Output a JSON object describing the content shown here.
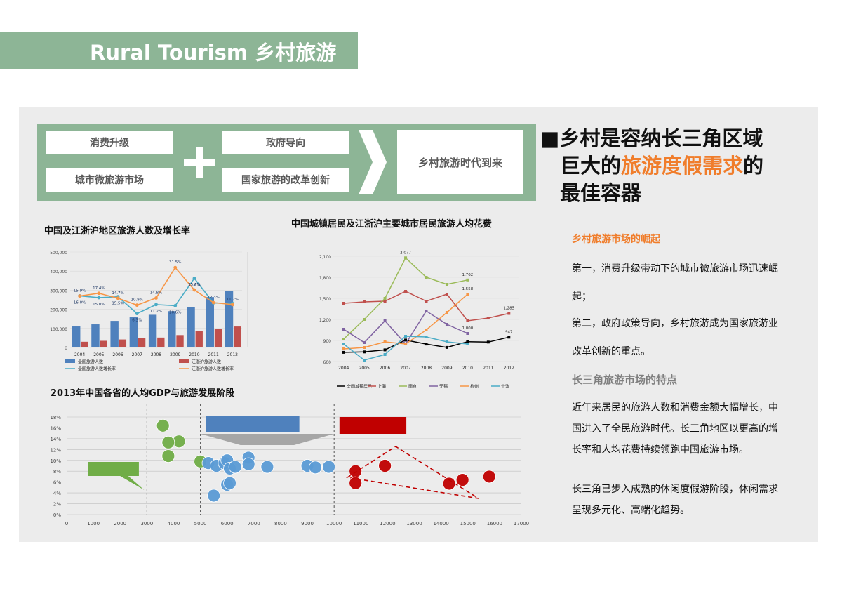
{
  "header": {
    "title": "Rural Tourism  乡村旅游"
  },
  "flow": {
    "box1_top": "消费升级",
    "box1_bottom": "城市微旅游市场",
    "box2_top": "政府导向",
    "box2_bottom": "国家旅游的改革创新",
    "result": "乡村旅游时代到来"
  },
  "right": {
    "heading_line1": "■乡村是容纳长三角区域",
    "heading_line2_pre": "巨大的",
    "heading_line2_hl": "旅游度假需求",
    "heading_line2_post": "的",
    "heading_line3": "最佳容器",
    "sub1": "乡村旅游市场的崛起",
    "para1_l1": "第一，消费升级带动下的城市微旅游市场迅速崛",
    "para1_l2": "起；",
    "para2_l1": "第二，政府政策导向，乡村旅游成为国家旅游业",
    "para2_l2": "改革创新的重点。",
    "sub2": "长三角旅游市场的特点",
    "para3_l1": "近年来居民的旅游人数和消费金额大幅增长，中",
    "para3_l2": "国进入了全民旅游时代。长三角地区以更高的增",
    "para3_l3": "长率和人均花费持续领跑中国旅游市场。",
    "para4_l1": "长三角已步入成熟的休闲度假游阶段，休闲需求",
    "para4_l2": "呈现多元化、高端化趋势。",
    "accent_color": "#f07d2b",
    "green_color": "#8db596"
  },
  "chart_data": [
    {
      "type": "bar",
      "title": "中国及江浙沪地区旅游人数及增长率",
      "categories": [
        "2004",
        "2005",
        "2006",
        "2007",
        "2008",
        "2009",
        "2010",
        "2011",
        "2012"
      ],
      "y_ticks": [
        "0",
        "100,000",
        "200,000",
        "300,000",
        "400,000",
        "500,000"
      ],
      "ylim": [
        0,
        500000
      ],
      "series": [
        {
          "name": "全国旅游人数",
          "color": "#4f81bd",
          "values": [
            110200,
            121200,
            139400,
            161000,
            171200,
            190200,
            210300,
            264100,
            295700
          ]
        },
        {
          "name": "江浙沪旅游人数",
          "color": "#c0504d",
          "values": [
            30000,
            35000,
            42000,
            48000,
            52000,
            65000,
            85000,
            98000,
            110000
          ]
        },
        {
          "name": "全国旅游人数增长率",
          "color": "#4bacc6",
          "line": true,
          "values": [
            0.16,
            0.15,
            0.155,
            0.063,
            0.112,
            0.106,
            0.256,
            0.121,
            0.118
          ]
        },
        {
          "name": "江浙沪旅游人数增长率",
          "color": "#f79646",
          "line": true,
          "values": [
            0.159,
            0.174,
            0.147,
            0.109,
            0.148,
            0.315,
            0.192,
            0.123,
            0.112
          ]
        }
      ],
      "labels": [
        "15.9%",
        "17.4%",
        "14.7%",
        "10.9%",
        "14.8%",
        "31.5%",
        "25.6%",
        "12.3%",
        "11.2%",
        "16.0%",
        "15.0%",
        "15.5%",
        "6.3%",
        "11.2%",
        "10.6%",
        "11.8%"
      ]
    },
    {
      "type": "line",
      "title": "中国城镇居民及江浙沪主要城市居民旅游人均花费",
      "categories": [
        "2004",
        "2005",
        "2006",
        "2007",
        "2008",
        "2009",
        "2010",
        "2011",
        "2012"
      ],
      "y_ticks": [
        "600",
        "900",
        "1,200",
        "1,500",
        "1,800",
        "2,100"
      ],
      "ylim": [
        600,
        2100
      ],
      "series": [
        {
          "name": "全国城镇居民",
          "color": "#000000",
          "values": [
            731,
            737,
            766,
            906,
            849,
            801,
            883,
            877,
            947
          ]
        },
        {
          "name": "上海",
          "color": "#c0504d",
          "values": [
            1430,
            1450,
            1460,
            1600,
            1460,
            1560,
            1180,
            1220,
            1285
          ]
        },
        {
          "name": "南京",
          "color": "#9bbb59",
          "values": [
            920,
            1200,
            1500,
            2077,
            1800,
            1700,
            1762,
            null,
            null
          ]
        },
        {
          "name": "无锡",
          "color": "#8064a2",
          "values": [
            1060,
            870,
            1180,
            850,
            1320,
            1130,
            1000,
            null,
            null
          ]
        },
        {
          "name": "杭州",
          "color": "#f79646",
          "values": [
            780,
            800,
            880,
            850,
            1050,
            1300,
            1558,
            null,
            null
          ]
        },
        {
          "name": "宁波",
          "color": "#4bacc6",
          "values": [
            850,
            620,
            700,
            960,
            950,
            880,
            850,
            null,
            null
          ]
        }
      ],
      "value_labels": [
        "2,077",
        "1,762",
        "1,558",
        "1,000",
        "1,285",
        "947"
      ]
    },
    {
      "type": "scatter",
      "title": "2013年中国各省的人均GDP与旅游发展阶段",
      "x_ticks": [
        "0",
        "1000",
        "2000",
        "3000",
        "4000",
        "5000",
        "6000",
        "7000",
        "8000",
        "9000",
        "10000",
        "11000",
        "12000",
        "13000",
        "14000",
        "15000",
        "16000",
        "17000"
      ],
      "y_ticks": [
        "0%",
        "2%",
        "4%",
        "6%",
        "8%",
        "10%",
        "12%",
        "14%",
        "16%",
        "18%"
      ],
      "xlim": [
        0,
        17000
      ],
      "ylim": [
        0,
        0.18
      ],
      "series": [
        {
          "name": "green",
          "color": "#70ad47",
          "points": [
            [
              3600,
              0.164
            ],
            [
              4200,
              0.135
            ],
            [
              3800,
              0.133
            ],
            [
              3800,
              0.108
            ],
            [
              5000,
              0.098
            ]
          ]
        },
        {
          "name": "blue",
          "color": "#5b9bd5",
          "points": [
            [
              5300,
              0.095
            ],
            [
              5600,
              0.09
            ],
            [
              5900,
              0.095
            ],
            [
              6000,
              0.1
            ],
            [
              6100,
              0.085
            ],
            [
              6300,
              0.088
            ],
            [
              6800,
              0.105
            ],
            [
              6800,
              0.093
            ],
            [
              7500,
              0.088
            ],
            [
              9000,
              0.09
            ],
            [
              9300,
              0.087
            ],
            [
              9800,
              0.088
            ],
            [
              6000,
              0.055
            ],
            [
              6100,
              0.058
            ],
            [
              5500,
              0.035
            ]
          ]
        },
        {
          "name": "red",
          "color": "#c00000",
          "points": [
            [
              10800,
              0.08
            ],
            [
              11900,
              0.09
            ],
            [
              10800,
              0.058
            ],
            [
              14300,
              0.057
            ],
            [
              14800,
              0.064
            ],
            [
              15800,
              0.07
            ]
          ]
        }
      ]
    }
  ]
}
